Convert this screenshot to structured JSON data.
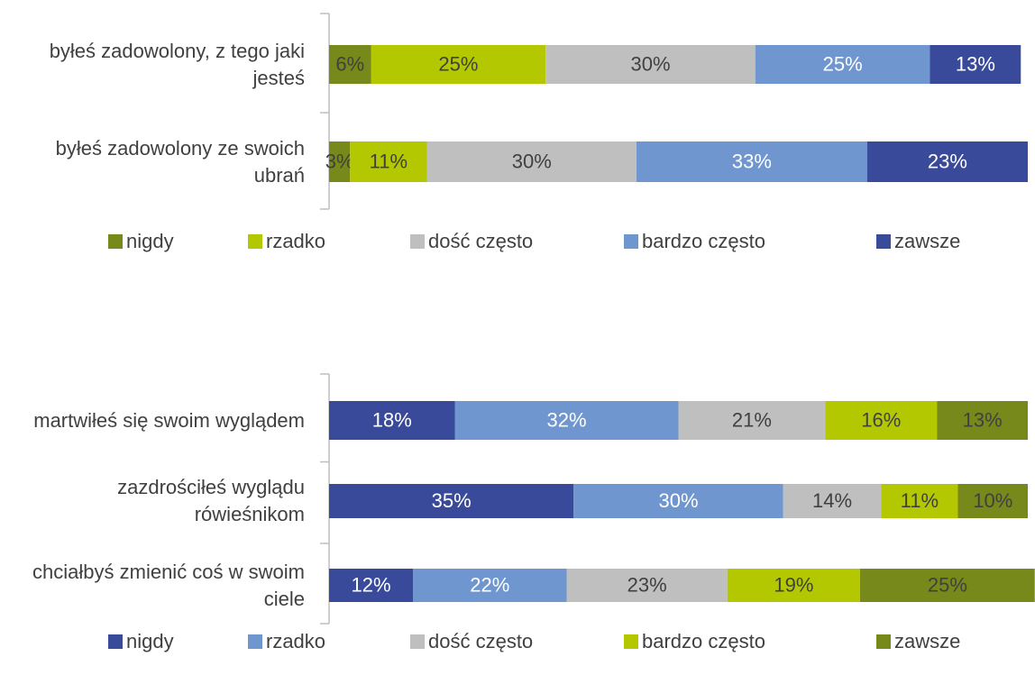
{
  "chart_data": [
    {
      "type": "bar",
      "orientation": "horizontal",
      "stacked": true,
      "categories": [
        "byłeś zadowolony, z tego jaki jesteś",
        "byłeś zadowolony ze swoich ubrań"
      ],
      "series": [
        {
          "name": "nigdy",
          "color": "#76891a",
          "values": [
            6,
            3
          ],
          "value_labels": [
            "6%",
            "3%"
          ]
        },
        {
          "name": "rzadko",
          "color": "#b3c800",
          "values": [
            25,
            11
          ],
          "value_labels": [
            "25%",
            "11%"
          ]
        },
        {
          "name": "dość często",
          "color": "#bfbfbf",
          "values": [
            30,
            30
          ],
          "value_labels": [
            "30%",
            "30%"
          ]
        },
        {
          "name": "bardzo często",
          "color": "#6f96cf",
          "values": [
            25,
            33
          ],
          "value_labels": [
            "25%",
            "33%"
          ]
        },
        {
          "name": "zawsze",
          "color": "#3a4a9a",
          "values": [
            13,
            23
          ],
          "value_labels": [
            "13%",
            "23%"
          ]
        }
      ],
      "legend": "bottom"
    },
    {
      "type": "bar",
      "orientation": "horizontal",
      "stacked": true,
      "categories": [
        "martwiłeś się swoim wyglądem",
        "zazdrościłeś wyglądu rówieśnikom",
        "chciałbyś zmienić coś w swoim ciele"
      ],
      "series": [
        {
          "name": "nigdy",
          "color": "#3a4a9a",
          "values": [
            18,
            35,
            12
          ],
          "value_labels": [
            "18%",
            "35%",
            "12%"
          ]
        },
        {
          "name": "rzadko",
          "color": "#6f96cf",
          "values": [
            32,
            30,
            22
          ],
          "value_labels": [
            "32%",
            "30%",
            "22%"
          ]
        },
        {
          "name": "dość często",
          "color": "#bfbfbf",
          "values": [
            21,
            14,
            23
          ],
          "value_labels": [
            "21%",
            "14%",
            "23%"
          ]
        },
        {
          "name": "bardzo często",
          "color": "#b3c800",
          "values": [
            16,
            11,
            19
          ],
          "value_labels": [
            "16%",
            "11%",
            "19%"
          ]
        },
        {
          "name": "zawsze",
          "color": "#76891a",
          "values": [
            13,
            10,
            25
          ],
          "value_labels": [
            "13%",
            "10%",
            "25%"
          ]
        }
      ],
      "legend": "bottom"
    }
  ]
}
